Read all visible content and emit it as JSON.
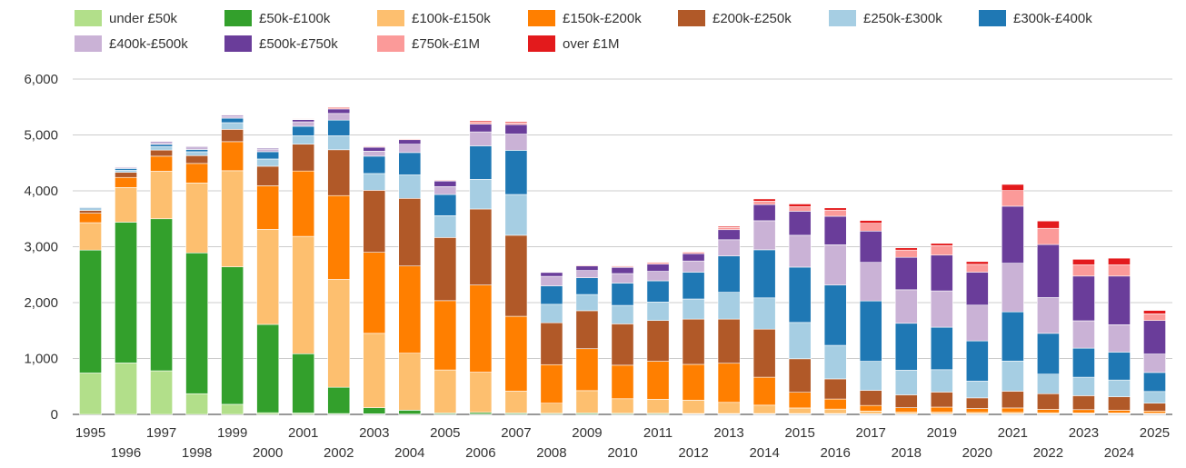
{
  "chart_data": {
    "type": "bar",
    "stacked": true,
    "title": "",
    "xlabel": "",
    "ylabel": "",
    "ylim": [
      0,
      6000
    ],
    "yticks": [
      "0",
      "1,000",
      "2,000",
      "3,000",
      "4,000",
      "5,000",
      "6,000"
    ],
    "grid": true,
    "legend_position": "top",
    "categories": [
      "1995",
      "1996",
      "1997",
      "1998",
      "1999",
      "2000",
      "2001",
      "2002",
      "2003",
      "2004",
      "2005",
      "2006",
      "2007",
      "2008",
      "2009",
      "2010",
      "2011",
      "2012",
      "2013",
      "2014",
      "2015",
      "2016",
      "2017",
      "2018",
      "2019",
      "2020",
      "2021",
      "2022",
      "2023",
      "2024",
      "2025"
    ],
    "series": [
      {
        "name": "under £50k",
        "color": "#b2df8a",
        "values": [
          740,
          920,
          780,
          370,
          180,
          30,
          25,
          15,
          10,
          5,
          5,
          5,
          5,
          5,
          5,
          5,
          5,
          5,
          5,
          5,
          5,
          5,
          5,
          5,
          5,
          5,
          5,
          5,
          5,
          5,
          5
        ]
      },
      {
        "name": "£50k-£100k",
        "color": "#33a02c",
        "values": [
          2200,
          2520,
          2720,
          2520,
          2460,
          1580,
          1060,
          470,
          110,
          70,
          20,
          30,
          20,
          15,
          20,
          15,
          15,
          10,
          10,
          10,
          10,
          10,
          5,
          5,
          5,
          5,
          5,
          5,
          5,
          5,
          5
        ]
      },
      {
        "name": "£100k-£150k",
        "color": "#fdbf6f",
        "values": [
          490,
          620,
          850,
          1250,
          1720,
          1700,
          2100,
          1930,
          1330,
          1020,
          770,
          720,
          390,
          180,
          400,
          260,
          250,
          240,
          200,
          150,
          100,
          80,
          50,
          30,
          30,
          25,
          25,
          20,
          15,
          15,
          10
        ]
      },
      {
        "name": "£150k-£200k",
        "color": "#ff7f00",
        "values": [
          170,
          180,
          270,
          350,
          520,
          780,
          1170,
          1500,
          1450,
          1560,
          1240,
          1560,
          1340,
          690,
          750,
          600,
          680,
          640,
          700,
          500,
          280,
          180,
          100,
          80,
          90,
          70,
          80,
          60,
          60,
          50,
          40
        ]
      },
      {
        "name": "£200k-£250k",
        "color": "#b15928",
        "values": [
          50,
          90,
          110,
          140,
          220,
          350,
          480,
          820,
          1110,
          1210,
          1130,
          1360,
          1450,
          750,
          680,
          740,
          730,
          810,
          790,
          860,
          600,
          360,
          270,
          230,
          270,
          190,
          300,
          280,
          250,
          240,
          140
        ]
      },
      {
        "name": "£250k-£300k",
        "color": "#a6cee3",
        "values": [
          30,
          40,
          60,
          70,
          120,
          130,
          150,
          250,
          300,
          420,
          390,
          530,
          730,
          330,
          290,
          330,
          330,
          360,
          480,
          560,
          650,
          600,
          520,
          440,
          400,
          300,
          540,
          350,
          330,
          300,
          210
        ]
      },
      {
        "name": "£300k-£400k",
        "color": "#1f78b4",
        "values": [
          20,
          30,
          40,
          40,
          80,
          130,
          170,
          280,
          310,
          400,
          380,
          600,
          790,
          330,
          300,
          400,
          380,
          480,
          650,
          860,
          990,
          1080,
          1080,
          840,
          760,
          720,
          880,
          730,
          520,
          500,
          340
        ]
      },
      {
        "name": "£400k-£500k",
        "color": "#cab2d6",
        "values": [
          10,
          20,
          30,
          30,
          30,
          40,
          80,
          120,
          90,
          150,
          140,
          250,
          290,
          170,
          130,
          170,
          170,
          200,
          290,
          520,
          570,
          720,
          690,
          600,
          650,
          640,
          870,
          640,
          490,
          490,
          330
        ]
      },
      {
        "name": "£500k-£750k",
        "color": "#6a3d9a",
        "values": [
          10,
          10,
          20,
          20,
          20,
          20,
          40,
          80,
          70,
          80,
          100,
          140,
          170,
          70,
          80,
          110,
          130,
          130,
          180,
          290,
          430,
          510,
          560,
          580,
          640,
          590,
          1020,
          950,
          800,
          870,
          600
        ]
      },
      {
        "name": "£750k-£1M",
        "color": "#fb9a99",
        "values": [
          5,
          5,
          5,
          5,
          5,
          5,
          10,
          20,
          15,
          15,
          15,
          40,
          30,
          10,
          15,
          20,
          30,
          30,
          40,
          60,
          80,
          110,
          140,
          130,
          170,
          140,
          280,
          290,
          200,
          200,
          120
        ]
      },
      {
        "name": "over £1M",
        "color": "#e31a1c",
        "values": [
          5,
          5,
          5,
          5,
          5,
          5,
          10,
          15,
          10,
          10,
          10,
          20,
          20,
          5,
          10,
          10,
          10,
          10,
          20,
          40,
          50,
          40,
          50,
          40,
          40,
          50,
          110,
          130,
          100,
          120,
          60
        ]
      }
    ]
  }
}
